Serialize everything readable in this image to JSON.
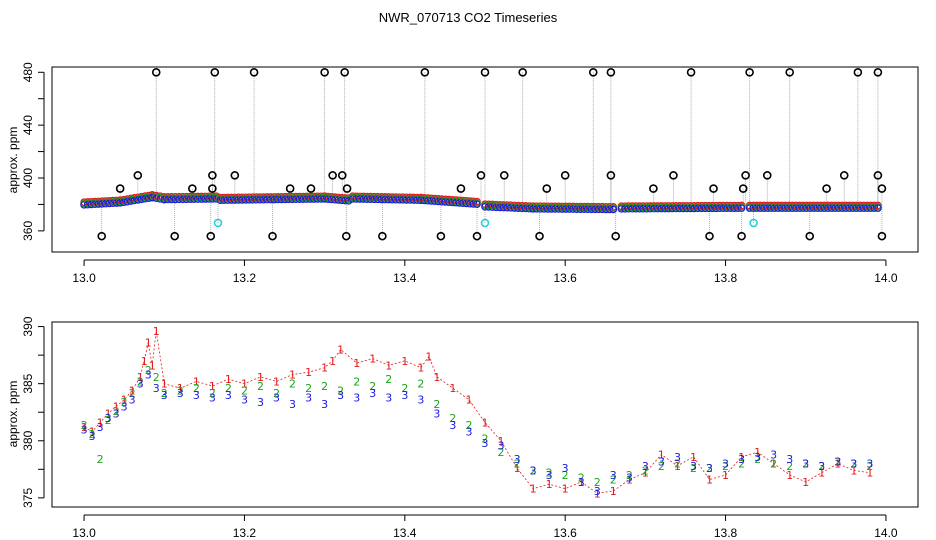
{
  "title": "NWR_070713  CO2 Timeseries",
  "colors": {
    "series1": "#e31a1c",
    "series2": "#1aa61a",
    "series3": "#1a1ae3",
    "outlier": "#000000",
    "flagged": "#29d0d8",
    "vline": "#9a9a9a"
  },
  "chart_data": [
    {
      "type": "scatter",
      "ylabel": "approx. ppm",
      "xlim": [
        12.96,
        14.04
      ],
      "ylim": [
        344,
        484
      ],
      "x_ticks": [
        "13.0",
        "13.2",
        "13.4",
        "13.6",
        "13.8",
        "14.0"
      ],
      "y_ticks": [
        "360",
        "400",
        "440",
        "480"
      ],
      "segments": [
        {
          "x": [
            13.0,
            13.045
          ],
          "y": [
            380.5,
            382
          ]
        },
        {
          "x": [
            13.045,
            13.085
          ],
          "y": [
            382,
            386
          ]
        },
        {
          "x": [
            13.085,
            13.1
          ],
          "y": [
            386,
            384.5
          ]
        },
        {
          "x": [
            13.1,
            13.165
          ],
          "y": [
            384.5,
            385
          ]
        },
        {
          "x": [
            13.17,
            13.3
          ],
          "y": [
            384,
            385
          ]
        },
        {
          "x": [
            13.3,
            13.33
          ],
          "y": [
            385,
            383.5
          ]
        },
        {
          "x": [
            13.335,
            13.42
          ],
          "y": [
            385,
            384
          ]
        },
        {
          "x": [
            13.42,
            13.49
          ],
          "y": [
            384,
            381
          ]
        },
        {
          "x": [
            13.5,
            13.56
          ],
          "y": [
            379,
            377.5
          ]
        },
        {
          "x": [
            13.56,
            13.66
          ],
          "y": [
            377.5,
            377
          ]
        },
        {
          "x": [
            13.67,
            13.82
          ],
          "y": [
            377.5,
            378
          ]
        },
        {
          "x": [
            13.83,
            13.99
          ],
          "y": [
            378,
            378
          ]
        }
      ],
      "outliers_high": [
        {
          "x": 13.09,
          "y": 480
        },
        {
          "x": 13.163,
          "y": 480
        },
        {
          "x": 13.212,
          "y": 480
        },
        {
          "x": 13.3,
          "y": 480
        },
        {
          "x": 13.325,
          "y": 480
        },
        {
          "x": 13.425,
          "y": 480
        },
        {
          "x": 13.5,
          "y": 480
        },
        {
          "x": 13.547,
          "y": 480
        },
        {
          "x": 13.635,
          "y": 480
        },
        {
          "x": 13.657,
          "y": 480
        },
        {
          "x": 13.757,
          "y": 480
        },
        {
          "x": 13.83,
          "y": 480
        },
        {
          "x": 13.88,
          "y": 480
        },
        {
          "x": 13.965,
          "y": 480
        },
        {
          "x": 13.99,
          "y": 480
        }
      ],
      "outliers_mid": [
        {
          "x": 13.067,
          "y": 402
        },
        {
          "x": 13.16,
          "y": 402
        },
        {
          "x": 13.188,
          "y": 402
        },
        {
          "x": 13.31,
          "y": 402
        },
        {
          "x": 13.322,
          "y": 402
        },
        {
          "x": 13.495,
          "y": 402
        },
        {
          "x": 13.524,
          "y": 402
        },
        {
          "x": 13.6,
          "y": 402
        },
        {
          "x": 13.657,
          "y": 402
        },
        {
          "x": 13.735,
          "y": 402
        },
        {
          "x": 13.825,
          "y": 402
        },
        {
          "x": 13.852,
          "y": 402
        },
        {
          "x": 13.948,
          "y": 402
        },
        {
          "x": 13.99,
          "y": 402
        },
        {
          "x": 13.045,
          "y": 392
        },
        {
          "x": 13.135,
          "y": 392
        },
        {
          "x": 13.16,
          "y": 392
        },
        {
          "x": 13.257,
          "y": 392
        },
        {
          "x": 13.283,
          "y": 392
        },
        {
          "x": 13.328,
          "y": 392
        },
        {
          "x": 13.47,
          "y": 392
        },
        {
          "x": 13.577,
          "y": 392
        },
        {
          "x": 13.71,
          "y": 392
        },
        {
          "x": 13.785,
          "y": 392
        },
        {
          "x": 13.822,
          "y": 392
        },
        {
          "x": 13.926,
          "y": 392
        },
        {
          "x": 13.995,
          "y": 392
        }
      ],
      "outliers_low": [
        {
          "x": 13.022,
          "y": 356
        },
        {
          "x": 13.113,
          "y": 356
        },
        {
          "x": 13.158,
          "y": 356
        },
        {
          "x": 13.235,
          "y": 356
        },
        {
          "x": 13.327,
          "y": 356
        },
        {
          "x": 13.372,
          "y": 356
        },
        {
          "x": 13.445,
          "y": 356
        },
        {
          "x": 13.49,
          "y": 356
        },
        {
          "x": 13.568,
          "y": 356
        },
        {
          "x": 13.663,
          "y": 356
        },
        {
          "x": 13.78,
          "y": 356
        },
        {
          "x": 13.82,
          "y": 356
        },
        {
          "x": 13.905,
          "y": 356
        },
        {
          "x": 13.995,
          "y": 356
        }
      ],
      "flagged": [
        {
          "x": 13.167,
          "y": 366
        },
        {
          "x": 13.5,
          "y": 366
        },
        {
          "x": 13.835,
          "y": 366
        }
      ]
    },
    {
      "type": "scatter",
      "ylabel": "approx. ppm",
      "xlim": [
        12.96,
        14.04
      ],
      "ylim": [
        374.2,
        390.4
      ],
      "x_ticks": [
        "13.0",
        "13.2",
        "13.4",
        "13.6",
        "13.8",
        "14.0"
      ],
      "y_ticks": [
        "375",
        "380",
        "385",
        "390"
      ],
      "series": [
        {
          "name": "1",
          "x": [
            13.0,
            13.01,
            13.02,
            13.03,
            13.04,
            13.05,
            13.06,
            13.07,
            13.075,
            13.08,
            13.085,
            13.09,
            13.1,
            13.12,
            13.14,
            13.16,
            13.18,
            13.2,
            13.22,
            13.24,
            13.26,
            13.28,
            13.3,
            13.31,
            13.32,
            13.34,
            13.36,
            13.38,
            13.4,
            13.42,
            13.43,
            13.44,
            13.46,
            13.48,
            13.5,
            13.52,
            13.54,
            13.56,
            13.58,
            13.6,
            13.62,
            13.64,
            13.66,
            13.68,
            13.7,
            13.72,
            13.74,
            13.76,
            13.78,
            13.8,
            13.82,
            13.84,
            13.86,
            13.88,
            13.9,
            13.92,
            13.94,
            13.96,
            13.98
          ],
          "y": [
            381.2,
            380.8,
            381.6,
            382.4,
            383.0,
            383.6,
            384.4,
            385.6,
            387.0,
            388.6,
            386.6,
            389.6,
            385.0,
            384.6,
            385.2,
            384.8,
            385.4,
            385.0,
            385.6,
            385.2,
            385.8,
            386.0,
            386.4,
            387.0,
            388.0,
            386.8,
            387.2,
            386.6,
            387.0,
            386.4,
            387.4,
            385.6,
            384.6,
            383.6,
            381.6,
            380.0,
            377.6,
            375.8,
            376.2,
            375.8,
            376.4,
            375.4,
            375.6,
            376.6,
            377.2,
            378.8,
            377.8,
            378.6,
            376.6,
            377.0,
            378.6,
            379.0,
            378.0,
            377.0,
            376.4,
            377.2,
            378.0,
            377.4,
            377.2
          ]
        },
        {
          "name": "2",
          "x": [
            13.0,
            13.01,
            13.02,
            13.03,
            13.04,
            13.05,
            13.06,
            13.07,
            13.08,
            13.09,
            13.1,
            13.12,
            13.14,
            13.16,
            13.18,
            13.2,
            13.22,
            13.24,
            13.26,
            13.28,
            13.3,
            13.32,
            13.34,
            13.36,
            13.38,
            13.4,
            13.42,
            13.44,
            13.46,
            13.48,
            13.5,
            13.52,
            13.54,
            13.56,
            13.58,
            13.6,
            13.62,
            13.64,
            13.66,
            13.68,
            13.7,
            13.72,
            13.74,
            13.76,
            13.78,
            13.8,
            13.82,
            13.84,
            13.86,
            13.88,
            13.9,
            13.92,
            13.94,
            13.96,
            13.98
          ],
          "y": [
            381.4,
            380.6,
            378.4,
            381.8,
            382.6,
            383.4,
            384.2,
            385.2,
            386.2,
            385.6,
            384.2,
            384.4,
            384.6,
            384.2,
            384.6,
            384.4,
            384.8,
            384.2,
            385.0,
            384.6,
            384.8,
            384.4,
            385.2,
            384.8,
            385.4,
            384.6,
            385.0,
            383.2,
            382.0,
            381.4,
            380.2,
            379.0,
            378.0,
            377.4,
            377.2,
            377.0,
            376.8,
            376.4,
            376.6,
            377.0,
            377.4,
            377.8,
            378.0,
            377.6,
            377.6,
            377.8,
            378.0,
            378.4,
            378.0,
            377.8,
            378.0,
            377.8,
            378.2,
            378.0,
            377.8
          ]
        },
        {
          "name": "3",
          "x": [
            13.0,
            13.01,
            13.02,
            13.03,
            13.04,
            13.05,
            13.06,
            13.07,
            13.08,
            13.09,
            13.1,
            13.12,
            13.14,
            13.16,
            13.18,
            13.2,
            13.22,
            13.24,
            13.26,
            13.28,
            13.3,
            13.32,
            13.34,
            13.36,
            13.38,
            13.4,
            13.42,
            13.44,
            13.46,
            13.48,
            13.5,
            13.52,
            13.54,
            13.56,
            13.58,
            13.6,
            13.62,
            13.64,
            13.66,
            13.68,
            13.7,
            13.72,
            13.74,
            13.76,
            13.78,
            13.8,
            13.82,
            13.84,
            13.86,
            13.88,
            13.9,
            13.92,
            13.94,
            13.96,
            13.98
          ],
          "y": [
            381.0,
            380.4,
            381.2,
            382.0,
            382.4,
            383.0,
            383.6,
            385.0,
            385.8,
            384.6,
            384.0,
            384.2,
            384.0,
            383.8,
            384.0,
            383.6,
            383.4,
            383.8,
            383.2,
            383.8,
            383.2,
            384.0,
            383.8,
            384.2,
            383.8,
            384.0,
            383.6,
            382.4,
            381.4,
            380.8,
            379.8,
            379.6,
            378.4,
            377.4,
            377.0,
            377.6,
            376.4,
            375.6,
            377.0,
            376.8,
            377.8,
            378.2,
            378.6,
            377.8,
            377.6,
            378.0,
            378.4,
            378.6,
            378.8,
            378.4,
            378.0,
            377.8,
            378.2,
            378.0,
            378.0
          ]
        }
      ]
    }
  ]
}
